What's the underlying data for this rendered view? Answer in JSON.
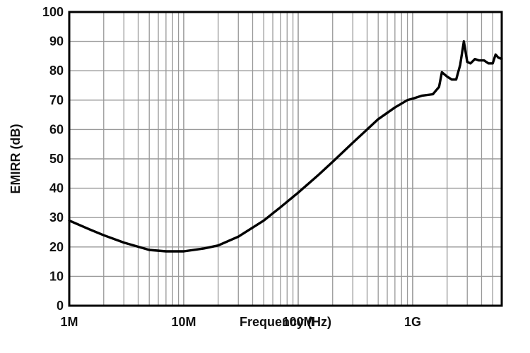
{
  "chart_data": {
    "type": "line",
    "title": "",
    "xlabel": "Frequency (Hz)",
    "ylabel": "EMIRR (dB)",
    "x_scale": "log",
    "xlim": [
      1000000,
      6000000000
    ],
    "ylim": [
      0,
      100
    ],
    "x_ticks": [
      {
        "value": 1000000,
        "label": "1M"
      },
      {
        "value": 10000000,
        "label": "10M"
      },
      {
        "value": 100000000,
        "label": "100M"
      },
      {
        "value": 1000000000,
        "label": "1G"
      }
    ],
    "y_ticks": [
      {
        "value": 0,
        "label": "0"
      },
      {
        "value": 10,
        "label": "10"
      },
      {
        "value": 20,
        "label": "20"
      },
      {
        "value": 30,
        "label": "30"
      },
      {
        "value": 40,
        "label": "40"
      },
      {
        "value": 50,
        "label": "50"
      },
      {
        "value": 60,
        "label": "60"
      },
      {
        "value": 70,
        "label": "70"
      },
      {
        "value": 80,
        "label": "80"
      },
      {
        "value": 90,
        "label": "90"
      },
      {
        "value": 100,
        "label": "100"
      }
    ],
    "grid": true,
    "legend": "none",
    "colors": {
      "line": "#000000",
      "grid": "#999999",
      "frame": "#000000",
      "background": "#ffffff"
    },
    "series": [
      {
        "x": [
          1000000,
          1500000,
          2000000,
          3000000,
          5000000,
          7000000,
          10000000,
          15000000,
          20000000,
          30000000,
          50000000,
          70000000,
          100000000,
          150000000,
          200000000,
          300000000,
          500000000,
          700000000,
          900000000,
          1000000000,
          1200000000,
          1500000000,
          1700000000,
          1800000000,
          2000000000,
          2200000000,
          2400000000,
          2600000000,
          2800000000,
          3000000000,
          3200000000,
          3500000000,
          3800000000,
          4200000000,
          4600000000,
          5000000000,
          5300000000,
          5600000000,
          6000000000
        ],
        "y": [
          29,
          26,
          24,
          21.5,
          19,
          18.5,
          18.5,
          19.5,
          20.5,
          23.5,
          29,
          33.5,
          38.5,
          44.5,
          49,
          55.5,
          63.5,
          67.5,
          70,
          70.5,
          71.5,
          72,
          74.5,
          79.5,
          78,
          77,
          77,
          82,
          90,
          83,
          82.5,
          84,
          83.5,
          83.5,
          82.5,
          82.5,
          85.5,
          84.5,
          84
        ]
      }
    ]
  }
}
